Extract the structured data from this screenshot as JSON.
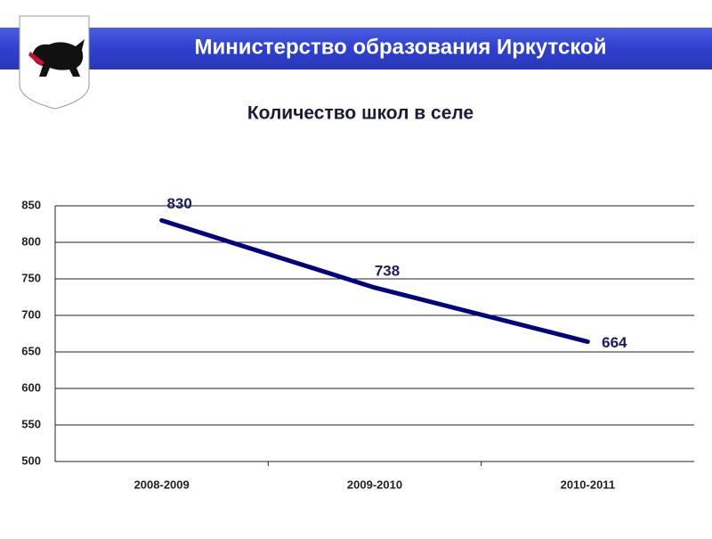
{
  "header": {
    "title": "Министерство образования Иркутской"
  },
  "chart_data": {
    "type": "line",
    "title": "Количество школ в селе",
    "categories": [
      "2008-2009",
      "2009-2010",
      "2010-2011"
    ],
    "values": [
      830,
      738,
      664
    ],
    "color": "#000080",
    "ylim": [
      500,
      850
    ],
    "yticks": [
      500,
      550,
      600,
      650,
      700,
      750,
      800,
      850
    ],
    "grid": true
  }
}
